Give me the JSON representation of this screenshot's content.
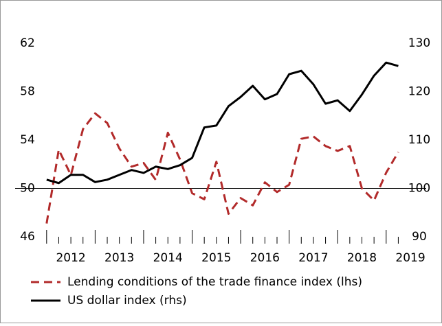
{
  "chart_data": {
    "type": "line",
    "x": [
      2012,
      2012.25,
      2012.5,
      2012.75,
      2013,
      2013.25,
      2013.5,
      2013.75,
      2014,
      2014.25,
      2014.5,
      2014.75,
      2015,
      2015.25,
      2015.5,
      2015.75,
      2016,
      2016.25,
      2016.5,
      2016.75,
      2017,
      2017.25,
      2017.5,
      2017.75,
      2018,
      2018.25,
      2018.5,
      2018.75,
      2019,
      2019.25
    ],
    "series": [
      {
        "name": "Lending conditions of the trade finance index (lhs)",
        "color": "#b22a2a",
        "dashed": true,
        "axis": "y",
        "values": [
          47.1,
          53.2,
          51.1,
          54.9,
          56.2,
          55.4,
          53.3,
          51.8,
          52.1,
          50.7,
          54.6,
          52.4,
          49.6,
          49.1,
          52.2,
          47.9,
          49.2,
          48.6,
          50.5,
          49.7,
          50.3,
          54.1,
          54.3,
          53.5,
          53.1,
          53.5,
          50.0,
          49.0,
          51.3,
          53.0
        ]
      },
      {
        "name": "US dollar index (rhs)",
        "color": "#000000",
        "dashed": false,
        "axis": "y2",
        "values": [
          101.8,
          101.1,
          102.8,
          102.8,
          101.3,
          101.8,
          102.8,
          103.8,
          103.2,
          104.5,
          104.0,
          104.8,
          106.3,
          112.6,
          113.0,
          117.0,
          118.9,
          121.2,
          118.4,
          119.5,
          123.6,
          124.3,
          121.5,
          117.5,
          118.2,
          116.0,
          119.4,
          123.3,
          126.0,
          125.3
        ]
      }
    ],
    "xlim": [
      2011.96,
      2019.4
    ],
    "xticks": [
      2012,
      2013,
      2014,
      2015,
      2016,
      2017,
      2018,
      2019
    ],
    "ylim": [
      46,
      62
    ],
    "yticks": [
      46,
      50,
      54,
      58,
      62
    ],
    "y2lim": [
      90,
      130
    ],
    "y2ticks": [
      90,
      100,
      110,
      120,
      130
    ],
    "reference_line": 50
  }
}
